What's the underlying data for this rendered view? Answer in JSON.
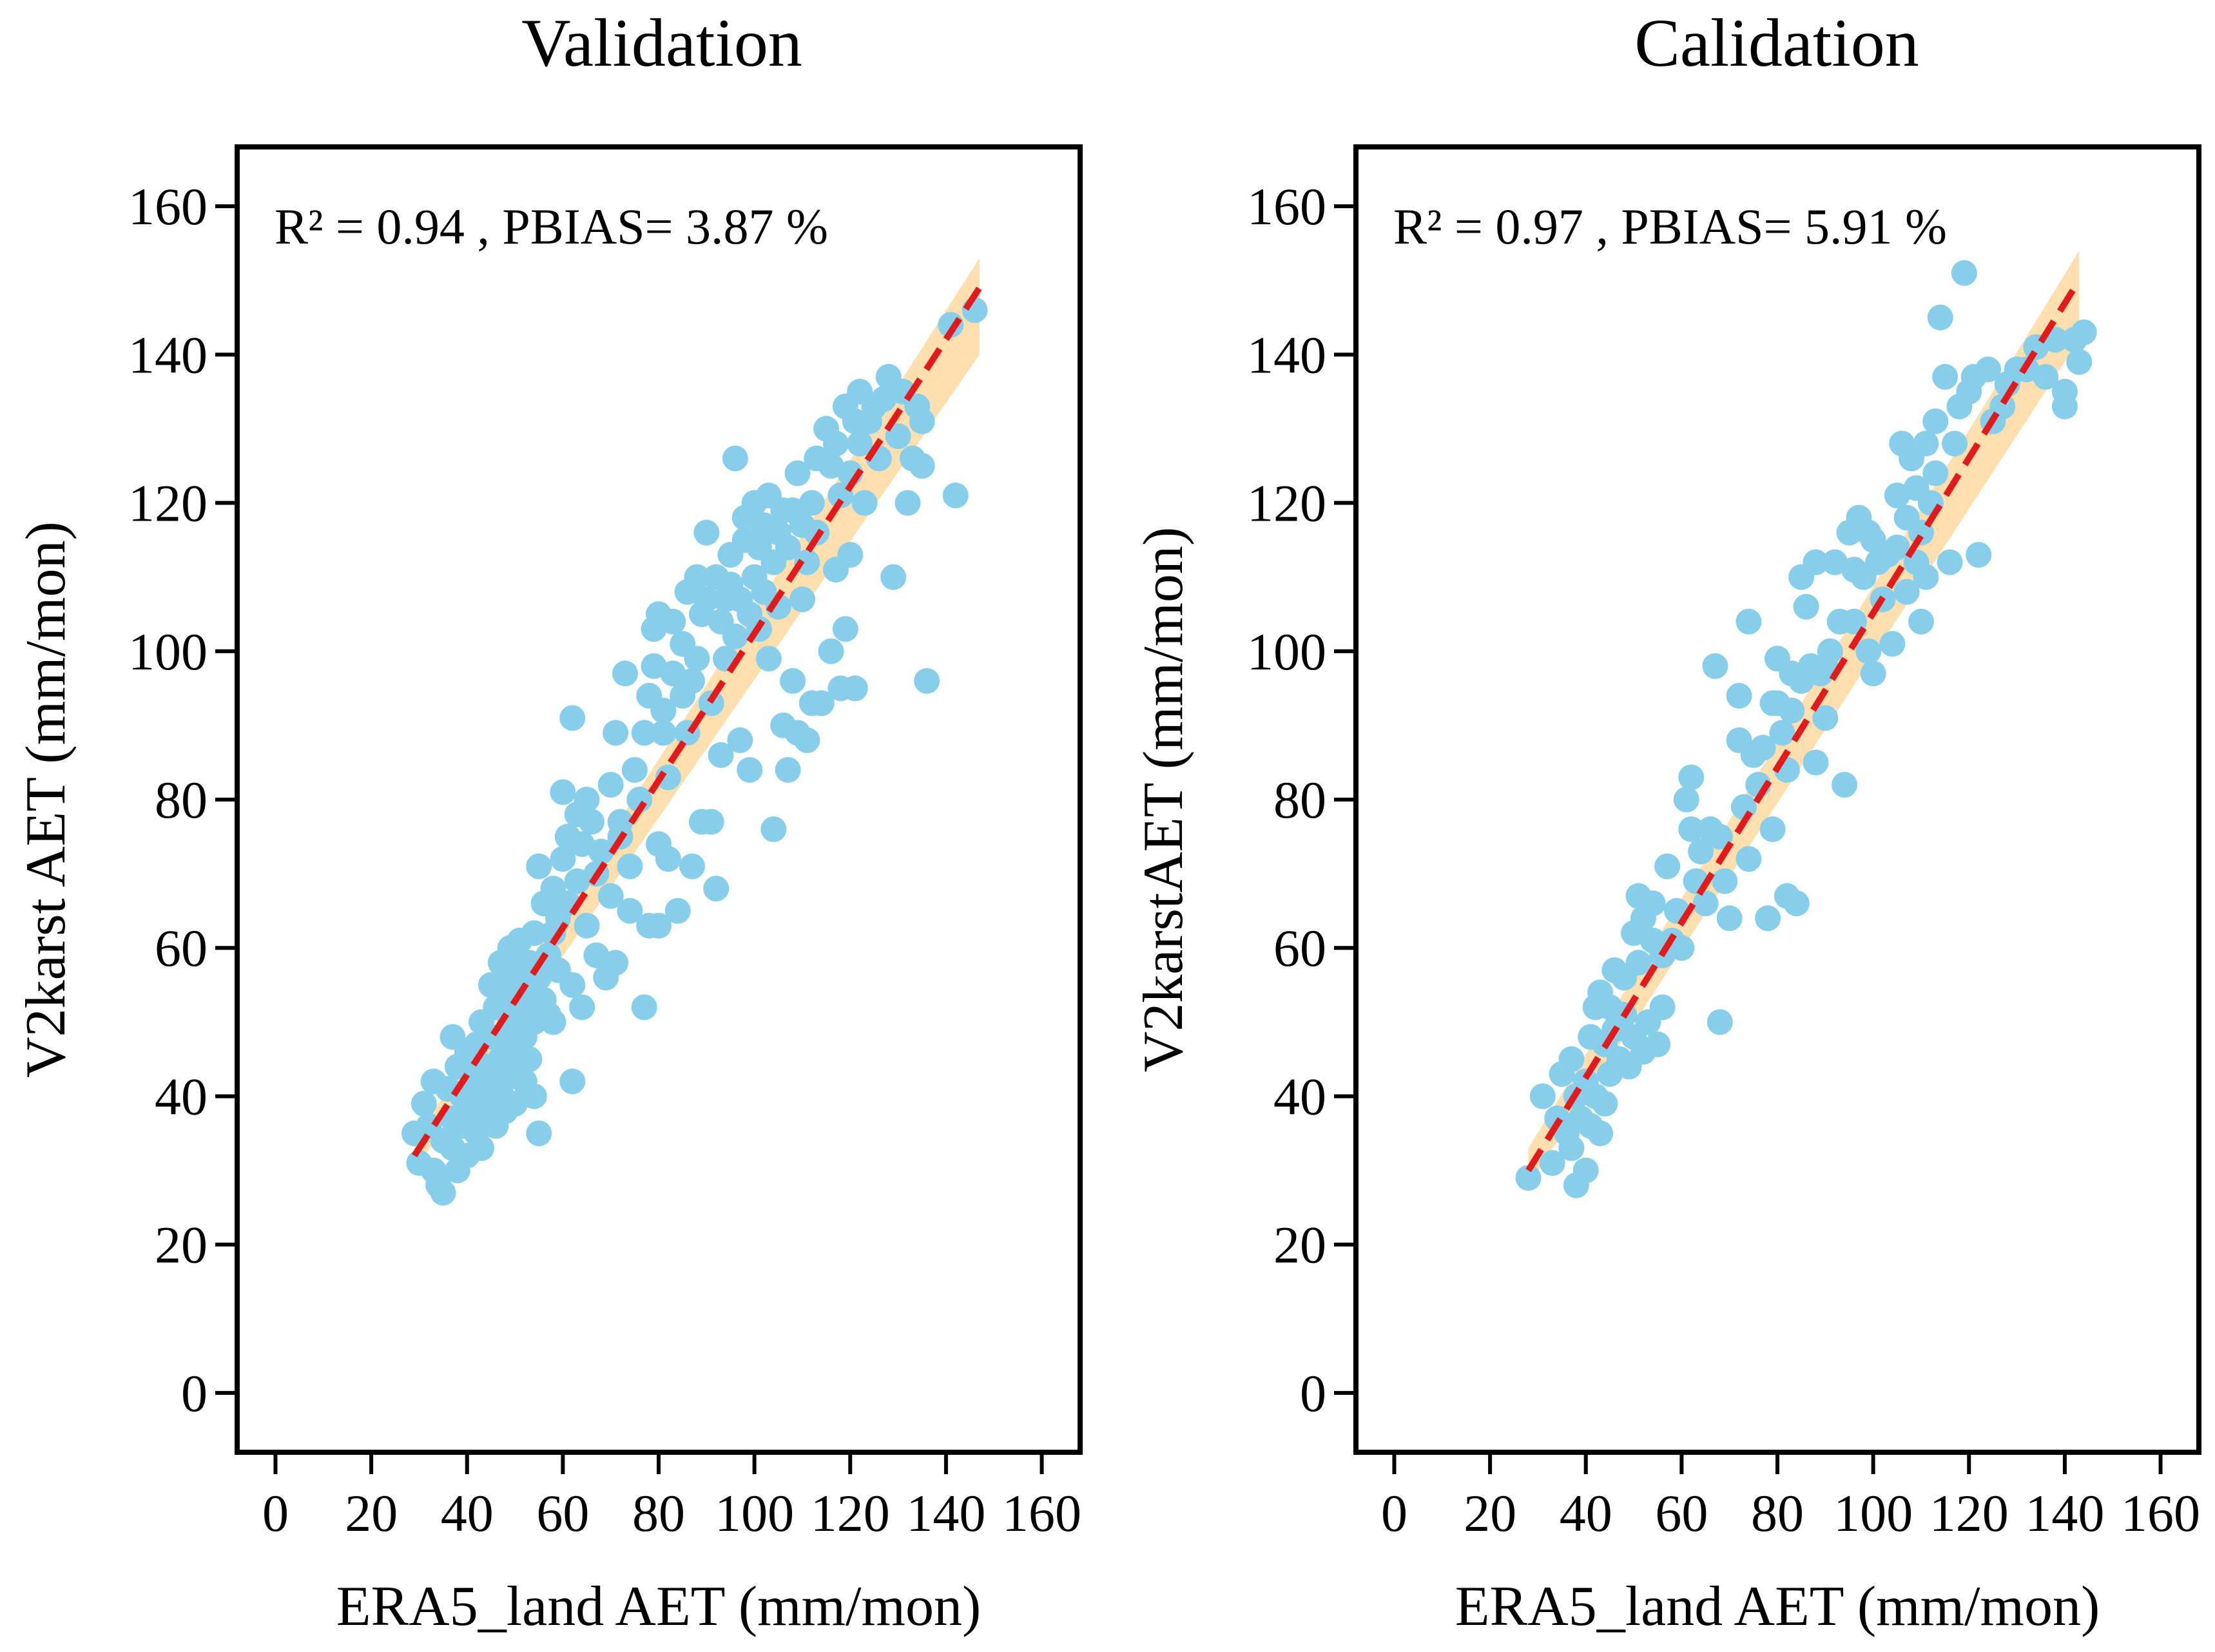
{
  "chart_data": [
    {
      "type": "scatter",
      "title": "Validation",
      "xlabel": "ERA5_land AET (mm/mon)",
      "ylabel": "V2karst AET (mm/mon)",
      "xlim": [
        -8,
        168
      ],
      "ylim": [
        -8,
        168
      ],
      "xticks": [
        0,
        20,
        40,
        60,
        80,
        100,
        120,
        140,
        160
      ],
      "yticks": [
        0,
        20,
        40,
        60,
        80,
        100,
        120,
        140,
        160
      ],
      "grid": false,
      "annotation": "R² = 0.94 , PBIAS= 3.87 %",
      "fit_line": {
        "x": [
          29,
          147
        ],
        "y": [
          32,
          149
        ]
      },
      "confidence_band": {
        "x": [
          29,
          147
        ],
        "lower": [
          30,
          140
        ],
        "upper": [
          34,
          153
        ]
      },
      "point_color": "#87CEEB",
      "fit_color": "#E31A1C",
      "band_color": "#FFD9A0",
      "points": [
        [
          29,
          35
        ],
        [
          30,
          31
        ],
        [
          31,
          39
        ],
        [
          32,
          36
        ],
        [
          33,
          42
        ],
        [
          33,
          30
        ],
        [
          34,
          28
        ],
        [
          35,
          27
        ],
        [
          35,
          34
        ],
        [
          36,
          41
        ],
        [
          37,
          37
        ],
        [
          37,
          33
        ],
        [
          37,
          48
        ],
        [
          38,
          44
        ],
        [
          38,
          30
        ],
        [
          39,
          40
        ],
        [
          39,
          36
        ],
        [
          40,
          46
        ],
        [
          40,
          32
        ],
        [
          41,
          38
        ],
        [
          41,
          43
        ],
        [
          42,
          35
        ],
        [
          42,
          41
        ],
        [
          42,
          47
        ],
        [
          43,
          50
        ],
        [
          43,
          33
        ],
        [
          43,
          39
        ],
        [
          44,
          44
        ],
        [
          44,
          37
        ],
        [
          45,
          42
        ],
        [
          45,
          48
        ],
        [
          45,
          55
        ],
        [
          46,
          40
        ],
        [
          46,
          36
        ],
        [
          46,
          52
        ],
        [
          47,
          45
        ],
        [
          47,
          58
        ],
        [
          47,
          41
        ],
        [
          48,
          38
        ],
        [
          48,
          47
        ],
        [
          48,
          55
        ],
        [
          49,
          43
        ],
        [
          49,
          60
        ],
        [
          49,
          50
        ],
        [
          50,
          46
        ],
        [
          50,
          39
        ],
        [
          50,
          53
        ],
        [
          50,
          57
        ],
        [
          51,
          49
        ],
        [
          51,
          44
        ],
        [
          51,
          61
        ],
        [
          52,
          42
        ],
        [
          52,
          55
        ],
        [
          52,
          48
        ],
        [
          53,
          58
        ],
        [
          53,
          45
        ],
        [
          53,
          52
        ],
        [
          54,
          50
        ],
        [
          54,
          62
        ],
        [
          54,
          40
        ],
        [
          55,
          35
        ],
        [
          55,
          56
        ],
        [
          55,
          71
        ],
        [
          56,
          53
        ],
        [
          56,
          66
        ],
        [
          57,
          59
        ],
        [
          57,
          51
        ],
        [
          58,
          62
        ],
        [
          58,
          68
        ],
        [
          58,
          50
        ],
        [
          59,
          64
        ],
        [
          59,
          57
        ],
        [
          60,
          72
        ],
        [
          60,
          81
        ],
        [
          61,
          66
        ],
        [
          61,
          75
        ],
        [
          62,
          55
        ],
        [
          62,
          91
        ],
        [
          62,
          42
        ],
        [
          63,
          78
        ],
        [
          63,
          69
        ],
        [
          64,
          52
        ],
        [
          64,
          74
        ],
        [
          65,
          80
        ],
        [
          65,
          63
        ],
        [
          66,
          77
        ],
        [
          67,
          70
        ],
        [
          67,
          59
        ],
        [
          68,
          73
        ],
        [
          69,
          56
        ],
        [
          70,
          82
        ],
        [
          70,
          67
        ],
        [
          71,
          89
        ],
        [
          71,
          58
        ],
        [
          72,
          75
        ],
        [
          72,
          77
        ],
        [
          73,
          97
        ],
        [
          74,
          65
        ],
        [
          74,
          71
        ],
        [
          75,
          84
        ],
        [
          76,
          80
        ],
        [
          77,
          89
        ],
        [
          77,
          52
        ],
        [
          78,
          94
        ],
        [
          78,
          63
        ],
        [
          79,
          98
        ],
        [
          79,
          103
        ],
        [
          80,
          105
        ],
        [
          80,
          74
        ],
        [
          80,
          63
        ],
        [
          81,
          89
        ],
        [
          81,
          92
        ],
        [
          82,
          83
        ],
        [
          82,
          72
        ],
        [
          83,
          104
        ],
        [
          83,
          97
        ],
        [
          84,
          65
        ],
        [
          85,
          94
        ],
        [
          85,
          101
        ],
        [
          86,
          89
        ],
        [
          86,
          108
        ],
        [
          87,
          96
        ],
        [
          87,
          71
        ],
        [
          88,
          110
        ],
        [
          88,
          99
        ],
        [
          89,
          77
        ],
        [
          89,
          105
        ],
        [
          90,
          116
        ],
        [
          90,
          107
        ],
        [
          91,
          93
        ],
        [
          91,
          77
        ],
        [
          92,
          110
        ],
        [
          92,
          68
        ],
        [
          93,
          104
        ],
        [
          93,
          86
        ],
        [
          94,
          107
        ],
        [
          94,
          99
        ],
        [
          95,
          113
        ],
        [
          95,
          109
        ],
        [
          96,
          126
        ],
        [
          96,
          102
        ],
        [
          97,
          88
        ],
        [
          97,
          107
        ],
        [
          98,
          118
        ],
        [
          98,
          115
        ],
        [
          99,
          105
        ],
        [
          99,
          84
        ],
        [
          100,
          120
        ],
        [
          100,
          110
        ],
        [
          101,
          114
        ],
        [
          101,
          103
        ],
        [
          102,
          108
        ],
        [
          102,
          117
        ],
        [
          103,
          121
        ],
        [
          103,
          99
        ],
        [
          104,
          76
        ],
        [
          104,
          112
        ],
        [
          105,
          116
        ],
        [
          105,
          106
        ],
        [
          106,
          119
        ],
        [
          106,
          90
        ],
        [
          107,
          84
        ],
        [
          107,
          114
        ],
        [
          108,
          96
        ],
        [
          108,
          119
        ],
        [
          109,
          89
        ],
        [
          109,
          124
        ],
        [
          110,
          107
        ],
        [
          110,
          117
        ],
        [
          111,
          88
        ],
        [
          111,
          112
        ],
        [
          112,
          120
        ],
        [
          112,
          93
        ],
        [
          113,
          126
        ],
        [
          113,
          116
        ],
        [
          114,
          93
        ],
        [
          115,
          130
        ],
        [
          116,
          100
        ],
        [
          116,
          125
        ],
        [
          117,
          111
        ],
        [
          117,
          128
        ],
        [
          118,
          95
        ],
        [
          118,
          121
        ],
        [
          119,
          103
        ],
        [
          119,
          133
        ],
        [
          120,
          113
        ],
        [
          120,
          124
        ],
        [
          121,
          131
        ],
        [
          121,
          95
        ],
        [
          122,
          135
        ],
        [
          122,
          128
        ],
        [
          123,
          120
        ],
        [
          124,
          131
        ],
        [
          125,
          133
        ],
        [
          126,
          126
        ],
        [
          127,
          134
        ],
        [
          128,
          137
        ],
        [
          129,
          110
        ],
        [
          130,
          129
        ],
        [
          131,
          135
        ],
        [
          132,
          120
        ],
        [
          133,
          126
        ],
        [
          134,
          133
        ],
        [
          135,
          125
        ],
        [
          135,
          131
        ],
        [
          136,
          96
        ],
        [
          141,
          144
        ],
        [
          142,
          121
        ],
        [
          146,
          146
        ]
      ]
    },
    {
      "type": "scatter",
      "title": "Calidation",
      "xlabel": "ERA5_land AET (mm/mon)",
      "ylabel": "V2karstAET (mm/mon)",
      "xlim": [
        -8,
        168
      ],
      "ylim": [
        -8,
        168
      ],
      "xticks": [
        0,
        20,
        40,
        60,
        80,
        100,
        120,
        140,
        160
      ],
      "yticks": [
        0,
        20,
        40,
        60,
        80,
        100,
        120,
        140,
        160
      ],
      "grid": false,
      "annotation": "R² = 0.97 , PBIAS= 5.91 %",
      "fit_line": {
        "x": [
          28,
          142
        ],
        "y": [
          30,
          149
        ]
      },
      "confidence_band": {
        "x": [
          28,
          143
        ],
        "lower": [
          28,
          142
        ],
        "upper": [
          33,
          154
        ]
      },
      "point_color": "#87CEEB",
      "fit_color": "#E31A1C",
      "band_color": "#FFD9A0",
      "points": [
        [
          28,
          29
        ],
        [
          31,
          40
        ],
        [
          33,
          31
        ],
        [
          34,
          37
        ],
        [
          35,
          43
        ],
        [
          36,
          35
        ],
        [
          37,
          33
        ],
        [
          37,
          45
        ],
        [
          38,
          28
        ],
        [
          38,
          40
        ],
        [
          39,
          37
        ],
        [
          40,
          42
        ],
        [
          40,
          30
        ],
        [
          41,
          48
        ],
        [
          41,
          36
        ],
        [
          42,
          52
        ],
        [
          42,
          40
        ],
        [
          43,
          54
        ],
        [
          43,
          35
        ],
        [
          44,
          39
        ],
        [
          44,
          47
        ],
        [
          45,
          52
        ],
        [
          45,
          43
        ],
        [
          46,
          49
        ],
        [
          46,
          57
        ],
        [
          47,
          45
        ],
        [
          48,
          51
        ],
        [
          48,
          56
        ],
        [
          49,
          44
        ],
        [
          50,
          48
        ],
        [
          50,
          62
        ],
        [
          51,
          67
        ],
        [
          51,
          58
        ],
        [
          52,
          46
        ],
        [
          52,
          64
        ],
        [
          53,
          50
        ],
        [
          54,
          66
        ],
        [
          54,
          61
        ],
        [
          55,
          47
        ],
        [
          56,
          52
        ],
        [
          56,
          59
        ],
        [
          57,
          71
        ],
        [
          58,
          61
        ],
        [
          59,
          65
        ],
        [
          60,
          60
        ],
        [
          61,
          80
        ],
        [
          62,
          83
        ],
        [
          62,
          76
        ],
        [
          63,
          69
        ],
        [
          64,
          73
        ],
        [
          65,
          66
        ],
        [
          66,
          76
        ],
        [
          67,
          98
        ],
        [
          68,
          50
        ],
        [
          68,
          75
        ],
        [
          69,
          69
        ],
        [
          70,
          64
        ],
        [
          72,
          94
        ],
        [
          72,
          88
        ],
        [
          73,
          79
        ],
        [
          74,
          104
        ],
        [
          74,
          72
        ],
        [
          75,
          86
        ],
        [
          76,
          82
        ],
        [
          77,
          87
        ],
        [
          78,
          64
        ],
        [
          79,
          93
        ],
        [
          79,
          76
        ],
        [
          80,
          99
        ],
        [
          80,
          93
        ],
        [
          81,
          89
        ],
        [
          82,
          84
        ],
        [
          82,
          67
        ],
        [
          83,
          97
        ],
        [
          83,
          92
        ],
        [
          84,
          66
        ],
        [
          85,
          110
        ],
        [
          85,
          96
        ],
        [
          86,
          106
        ],
        [
          87,
          98
        ],
        [
          88,
          85
        ],
        [
          88,
          112
        ],
        [
          89,
          97
        ],
        [
          90,
          91
        ],
        [
          90,
          98
        ],
        [
          91,
          100
        ],
        [
          92,
          112
        ],
        [
          93,
          104
        ],
        [
          94,
          82
        ],
        [
          95,
          116
        ],
        [
          96,
          111
        ],
        [
          96,
          104
        ],
        [
          97,
          118
        ],
        [
          98,
          110
        ],
        [
          99,
          100
        ],
        [
          99,
          116
        ],
        [
          100,
          115
        ],
        [
          100,
          97
        ],
        [
          101,
          112
        ],
        [
          102,
          107
        ],
        [
          103,
          113
        ],
        [
          104,
          101
        ],
        [
          105,
          121
        ],
        [
          105,
          114
        ],
        [
          106,
          128
        ],
        [
          107,
          108
        ],
        [
          107,
          118
        ],
        [
          108,
          126
        ],
        [
          109,
          122
        ],
        [
          109,
          112
        ],
        [
          110,
          104
        ],
        [
          110,
          116
        ],
        [
          111,
          110
        ],
        [
          111,
          128
        ],
        [
          112,
          120
        ],
        [
          113,
          131
        ],
        [
          113,
          124
        ],
        [
          114,
          145
        ],
        [
          115,
          137
        ],
        [
          116,
          112
        ],
        [
          117,
          128
        ],
        [
          118,
          133
        ],
        [
          119,
          151
        ],
        [
          120,
          135
        ],
        [
          121,
          137
        ],
        [
          122,
          113
        ],
        [
          124,
          138
        ],
        [
          125,
          131
        ],
        [
          127,
          133
        ],
        [
          128,
          136
        ],
        [
          130,
          138
        ],
        [
          132,
          138
        ],
        [
          134,
          141
        ],
        [
          136,
          137
        ],
        [
          138,
          142
        ],
        [
          140,
          133
        ],
        [
          140,
          135
        ],
        [
          142,
          142
        ],
        [
          143,
          139
        ],
        [
          144,
          143
        ]
      ]
    }
  ]
}
